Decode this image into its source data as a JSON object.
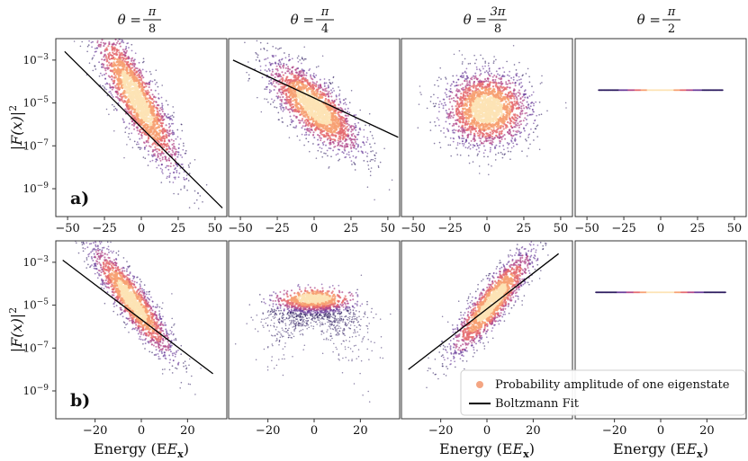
{
  "figure": {
    "legend": {
      "placement": "lower-right of panel b3",
      "entries": [
        {
          "label": "Probability amplitude of one eigenstate",
          "marker": "dot",
          "color": "#f4a582"
        },
        {
          "label": "Boltzmann Fit",
          "marker": "line",
          "color": "#000000"
        }
      ]
    },
    "colormap": [
      "#2b1a5e",
      "#6a3d9a",
      "#b1488a",
      "#e56b6f",
      "#f7a072",
      "#fde3b5"
    ]
  },
  "chart_data": [
    {
      "id": "a1",
      "row": "a",
      "row_label": "a)",
      "col_title": {
        "lhs": "θ =",
        "num": "π",
        "den": "8"
      },
      "type": "scatter",
      "xlim": [
        -58,
        58
      ],
      "ylim_log10": [
        -10.3,
        -2.0
      ],
      "xticks": [
        -50,
        -25,
        0,
        25,
        50
      ],
      "xtick_labels": [
        "−50",
        "−25",
        "0",
        "25",
        "50"
      ],
      "yticks_log10": [
        -9,
        -7,
        -5,
        -3
      ],
      "ytick_labels": [
        "10−9",
        "10−7",
        "10−5",
        "10−3"
      ],
      "ylabel": "|F(x)|2",
      "xlabel": "",
      "cloud": {
        "center_x": -3,
        "center_log10y": -4.8,
        "sx": 15,
        "sy": 0.9,
        "slope": -0.1,
        "n": 1800
      },
      "fit": {
        "x": [
          -52,
          55
        ],
        "log10y": [
          -2.6,
          -9.9
        ]
      }
    },
    {
      "id": "a2",
      "row": "a",
      "col_title": {
        "lhs": "θ =",
        "num": "π",
        "den": "4"
      },
      "type": "scatter",
      "xlim": [
        -58,
        58
      ],
      "ylim_log10": [
        -10.3,
        -2.0
      ],
      "xticks": [
        -50,
        -25,
        0,
        25,
        50
      ],
      "xtick_labels": [
        "−50",
        "−25",
        "0",
        "25",
        "50"
      ],
      "cloud": {
        "center_x": 0,
        "center_log10y": -5.2,
        "sx": 16,
        "sy": 0.75,
        "slope": -0.05,
        "n": 1800
      },
      "fit": {
        "x": [
          -55,
          57
        ],
        "log10y": [
          -3.0,
          -6.6
        ]
      }
    },
    {
      "id": "a3",
      "row": "a",
      "col_title": {
        "lhs": "θ =",
        "num": "3π",
        "den": "8"
      },
      "type": "scatter",
      "xlim": [
        -58,
        58
      ],
      "ylim_log10": [
        -10.3,
        -2.0
      ],
      "xticks": [
        -50,
        -25,
        0,
        25,
        50
      ],
      "xtick_labels": [
        "−50",
        "−25",
        "0",
        "25",
        "50"
      ],
      "cloud": {
        "center_x": 0,
        "center_log10y": -5.3,
        "sx": 15,
        "sy": 0.9,
        "slope": 0.0,
        "n": 1800
      },
      "fit": null
    },
    {
      "id": "a4",
      "row": "a",
      "col_title": {
        "lhs": "θ =",
        "num": "π",
        "den": "2"
      },
      "type": "scatter",
      "xlim": [
        -58,
        58
      ],
      "ylim_log10": [
        -10.3,
        -2.0
      ],
      "xticks": [
        -50,
        -25,
        0,
        25,
        50
      ],
      "xtick_labels": [
        "−50",
        "−25",
        "0",
        "25",
        "50"
      ],
      "flat_line": {
        "x": [
          -42,
          42
        ],
        "log10y": -4.4
      },
      "fit": null
    },
    {
      "id": "b1",
      "row": "b",
      "row_label": "b)",
      "type": "scatter",
      "xlim": [
        -37,
        37
      ],
      "ylim_log10": [
        -10.3,
        -2.0
      ],
      "xticks": [
        -20,
        0,
        20
      ],
      "xtick_labels": [
        "−20",
        "0",
        "20"
      ],
      "yticks_log10": [
        -9,
        -7,
        -5,
        -3
      ],
      "ytick_labels": [
        "10−9",
        "10−7",
        "10−5",
        "10−3"
      ],
      "ylabel": "|F(x)|2",
      "xlabel": "Energy (Ex)",
      "cloud": {
        "center_x": -4,
        "center_log10y": -4.8,
        "sx": 9,
        "sy": 0.6,
        "slope": -0.13,
        "n": 1500
      },
      "fit": {
        "x": [
          -34,
          31
        ],
        "log10y": [
          -2.9,
          -8.2
        ]
      }
    },
    {
      "id": "b2",
      "row": "b",
      "type": "scatter",
      "xlim": [
        -37,
        37
      ],
      "ylim_log10": [
        -10.3,
        -2.0
      ],
      "xticks": [
        -20,
        0,
        20
      ],
      "xtick_labels": [
        "−20",
        "0",
        "20"
      ],
      "cloud": {
        "center_x": 0,
        "center_log10y": -4.7,
        "sx": 10,
        "sy": 0.3,
        "slope": 0.0,
        "spread_down": true,
        "n": 1500
      },
      "fit": null
    },
    {
      "id": "b3",
      "row": "b",
      "type": "scatter",
      "xlim": [
        -37,
        37
      ],
      "ylim_log10": [
        -10.3,
        -2.0
      ],
      "xticks": [
        -20,
        0,
        20
      ],
      "xtick_labels": [
        "−20",
        "0",
        "20"
      ],
      "xlabel": "Energy (Ex)",
      "cloud": {
        "center_x": 2,
        "center_log10y": -4.9,
        "sx": 9,
        "sy": 0.6,
        "slope": 0.12,
        "n": 1500
      },
      "fit": {
        "x": [
          -34,
          31
        ],
        "log10y": [
          -8.0,
          -2.6
        ]
      }
    },
    {
      "id": "b4",
      "row": "b",
      "type": "scatter",
      "xlim": [
        -37,
        37
      ],
      "ylim_log10": [
        -10.3,
        -2.0
      ],
      "xticks": [
        -20,
        0,
        20
      ],
      "xtick_labels": [
        "−20",
        "0",
        "20"
      ],
      "xlabel": "Energy (Ex)",
      "flat_line": {
        "x": [
          -28,
          28
        ],
        "log10y": -4.4
      },
      "fit": null
    }
  ]
}
